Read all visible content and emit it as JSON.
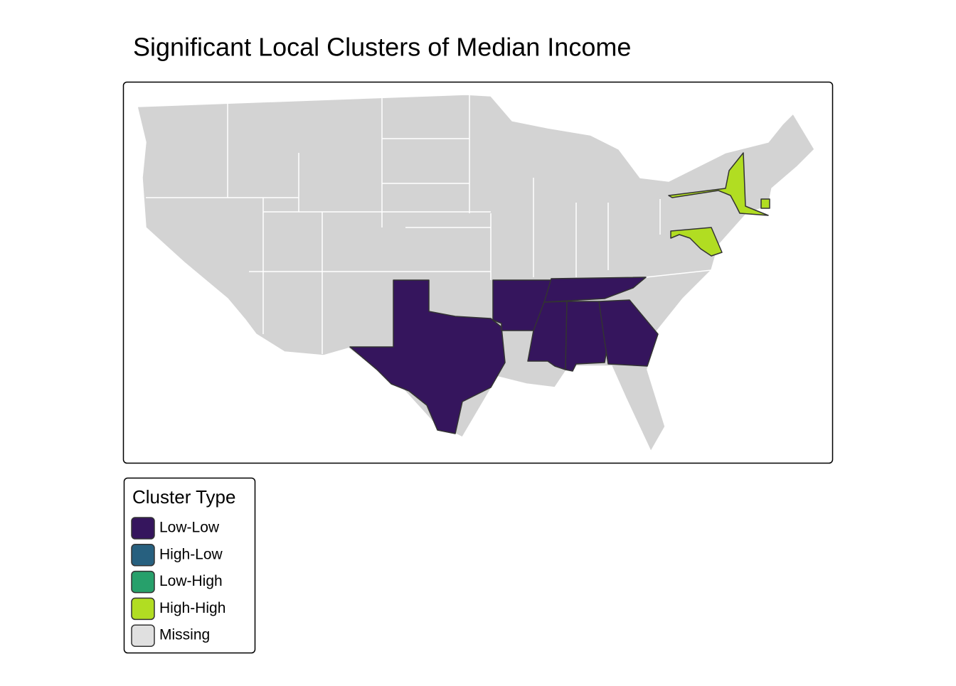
{
  "title": "Significant Local Clusters of Median Income",
  "legend": {
    "title": "Cluster Type",
    "items": [
      {
        "label": "Low-Low",
        "color": "#35155d"
      },
      {
        "label": "High-Low",
        "color": "#27607f"
      },
      {
        "label": "Low-High",
        "color": "#27a06b"
      },
      {
        "label": "High-High",
        "color": "#b1dd22"
      },
      {
        "label": "Missing",
        "color": "#e0e0e0"
      }
    ]
  }
}
